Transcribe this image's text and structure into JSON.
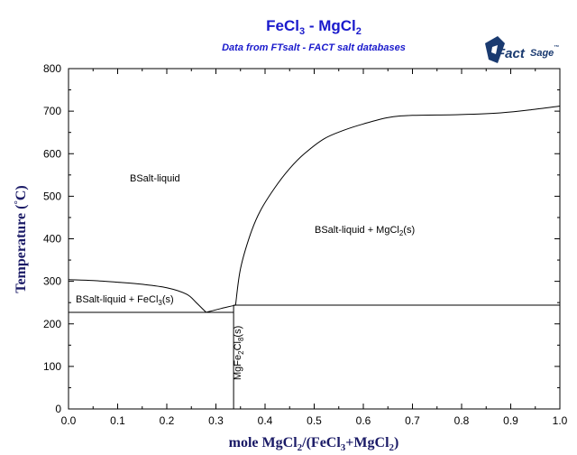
{
  "header": {
    "title_main": "FeCl",
    "title_sub1": "3",
    "title_mid": " - MgCl",
    "title_sub2": "2",
    "subtitle": "Data from FTsalt - FACT salt databases"
  },
  "logo": {
    "word_fact": "Fact",
    "word_sage": "Sage",
    "mark": "™",
    "color": "#1a3a70"
  },
  "chart_data": {
    "type": "line",
    "title": "FeCl3 - MgCl2",
    "subtitle": "Data from FTsalt - FACT salt databases",
    "xlabel": "mole MgCl2/(FeCl3+MgCl2)",
    "ylabel": "Temperature (°C)",
    "xlim": [
      0,
      1
    ],
    "ylim": [
      0,
      800
    ],
    "xticks": [
      "0.0",
      "0.1",
      "0.2",
      "0.3",
      "0.4",
      "0.5",
      "0.6",
      "0.7",
      "0.8",
      "0.9",
      "1.0"
    ],
    "yticks": [
      "0",
      "100",
      "200",
      "300",
      "400",
      "500",
      "600",
      "700",
      "800"
    ],
    "grid": false,
    "series": [
      {
        "x": [
          0.0,
          0.05,
          0.1,
          0.15,
          0.2,
          0.24,
          0.26,
          0.28
        ],
        "y": [
          304,
          302,
          298,
          293,
          285,
          270,
          250,
          227
        ]
      },
      {
        "x": [
          0.28,
          0.31,
          0.34
        ],
        "y": [
          227,
          236,
          244
        ]
      },
      {
        "x": [
          0.34,
          0.35,
          0.37,
          0.39,
          0.42,
          0.45,
          0.48,
          0.52,
          0.56,
          0.6,
          0.65,
          0.7,
          0.8,
          0.88,
          0.94,
          1.0
        ],
        "y": [
          244,
          330,
          410,
          465,
          520,
          565,
          600,
          635,
          655,
          670,
          685,
          690,
          692,
          696,
          703,
          712
        ]
      },
      {
        "x": [
          0.0,
          0.336
        ],
        "y": [
          227,
          227
        ]
      },
      {
        "x": [
          0.336,
          1.0
        ],
        "y": [
          244,
          244
        ]
      },
      {
        "x": [
          0.336,
          0.336
        ],
        "y": [
          0,
          244
        ]
      }
    ],
    "labels": {
      "bsalt_liquid": "BSalt-liquid",
      "liquid_mgcl2": {
        "pre": "BSalt-liquid + MgCl",
        "sub": "2",
        "post": "(s)"
      },
      "liquid_fecl3": {
        "pre": "BSalt-liquid + FeCl",
        "sub": "3",
        "post": "(s)"
      },
      "mgfe2cl8": {
        "p1": "MgFe",
        "s1": "2",
        "p2": "Cl",
        "s2": "8",
        "p3": "(s)"
      }
    },
    "axis_titles": {
      "x": {
        "p1": "mole MgCl",
        "s1": "2",
        "p2": "/(FeCl",
        "s2": "3",
        "p3": "+MgCl",
        "s3": "2",
        "p4": ")"
      },
      "y": {
        "p1": "Temperature (",
        "deg": "°",
        "p2": "C)"
      }
    }
  }
}
